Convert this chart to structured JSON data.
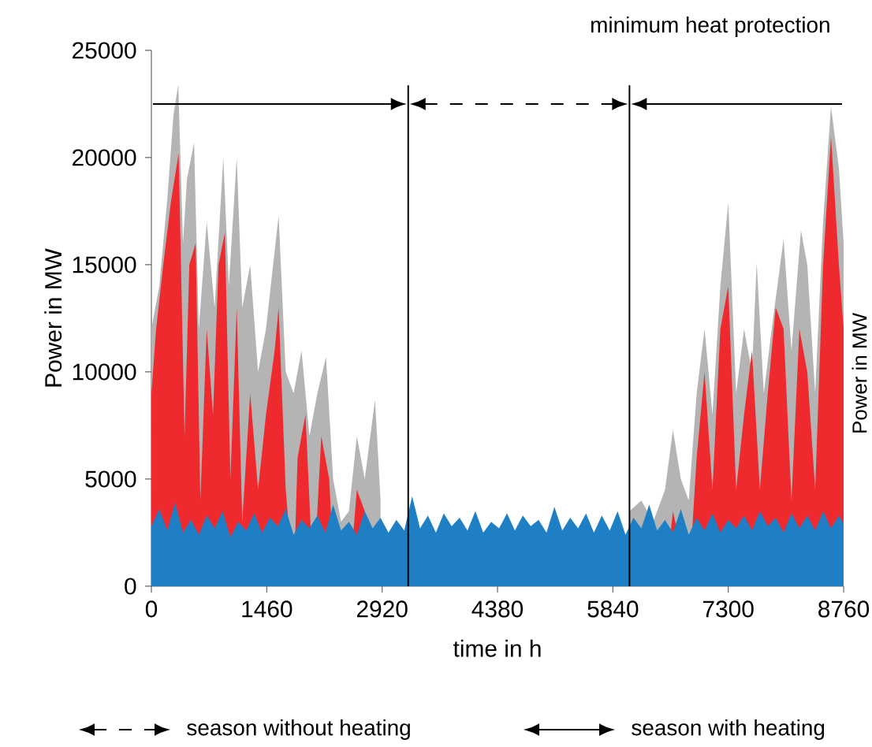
{
  "chart_data": {
    "type": "area",
    "title": "minimum heat protection",
    "xlabel": "time in h",
    "ylabel": "Power in MW",
    "annotations": [
      "season without heating",
      "season with heating",
      "Power in MW"
    ],
    "xlim": [
      0,
      8760
    ],
    "ylim": [
      0,
      25000
    ],
    "xticks": [
      0,
      1460,
      2920,
      4380,
      5840,
      7300,
      8760
    ],
    "yticks": [
      0,
      5000,
      10000,
      15000,
      20000,
      25000
    ],
    "x": [
      0,
      100,
      200,
      300,
      400,
      500,
      600,
      700,
      800,
      900,
      1000,
      1100,
      1200,
      1300,
      1400,
      1500,
      1600,
      1700,
      1800,
      1900,
      2000,
      2100,
      2200,
      2300,
      2400,
      2500,
      2600,
      2700,
      2800,
      2900,
      3000,
      3100,
      3200,
      3300,
      3400,
      3500,
      3600,
      3700,
      3800,
      3900,
      4000,
      4100,
      4200,
      4300,
      4400,
      4500,
      4600,
      4700,
      4800,
      4900,
      5000,
      5100,
      5200,
      5300,
      5400,
      5500,
      5600,
      5700,
      5800,
      5900,
      6000,
      6100,
      6200,
      6300,
      6400,
      6500,
      6600,
      6700,
      6800,
      6900,
      7000,
      7100,
      7200,
      7300,
      7400,
      7500,
      7600,
      7700,
      7800,
      7900,
      8000,
      8100,
      8200,
      8300,
      8400,
      8500,
      8600,
      8700,
      8760
    ],
    "series": [
      {
        "color": "#b4b4b4",
        "x": [
          0,
          100,
          200,
          280,
          340,
          400,
          450,
          540,
          600,
          700,
          800,
          910,
          980,
          1080,
          1150,
          1250,
          1350,
          1450,
          1610,
          1700,
          1800,
          1900,
          2000,
          2100,
          2210,
          2300,
          2400,
          2500,
          2600,
          2700,
          2830,
          2900,
          4500,
          6050,
          6200,
          6350,
          6500,
          6600,
          6700,
          6800,
          6900,
          7000,
          7100,
          7200,
          7300,
          7400,
          7500,
          7600,
          7660,
          7750,
          7850,
          8000,
          8100,
          8220,
          8300,
          8400,
          8500,
          8600,
          8700,
          8760
        ],
        "values": [
          12000,
          14000,
          18000,
          22000,
          23400,
          16000,
          19000,
          20700,
          12000,
          17000,
          13000,
          20000,
          14000,
          20000,
          13000,
          15000,
          10000,
          12000,
          17300,
          10000,
          9000,
          11000,
          7000,
          9000,
          10700,
          5000,
          3000,
          3500,
          7000,
          5000,
          8700,
          4000,
          null,
          3500,
          4000,
          3000,
          4500,
          7300,
          5000,
          4000,
          9000,
          12000,
          8000,
          14000,
          17900,
          9000,
          12000,
          10000,
          15100,
          9000,
          12000,
          16200,
          11000,
          16600,
          15000,
          9000,
          17000,
          22400,
          19500,
          16000
        ]
      },
      {
        "color": "#ee2a2f",
        "x": [
          0,
          60,
          150,
          250,
          345,
          420,
          480,
          560,
          620,
          700,
          780,
          850,
          930,
          1000,
          1080,
          1150,
          1250,
          1350,
          1450,
          1560,
          1610,
          1700,
          1800,
          1850,
          1950,
          2050,
          2150,
          2250,
          2320,
          2500,
          2600,
          2700,
          2900,
          3000,
          3250,
          4500,
          6050,
          6300,
          6500,
          6600,
          6800,
          6900,
          7000,
          7100,
          7200,
          7300,
          7400,
          7500,
          7600,
          7700,
          7800,
          7900,
          8000,
          8100,
          8200,
          8300,
          8400,
          8500,
          8600,
          8700,
          8760
        ],
        "values": [
          9000,
          12000,
          15000,
          18000,
          20200,
          7000,
          15000,
          16000,
          4000,
          12000,
          8000,
          15000,
          16500,
          5000,
          13000,
          3000,
          9000,
          4500,
          8000,
          11000,
          13000,
          4500,
          0,
          6000,
          8000,
          0,
          7000,
          5000,
          0,
          0,
          4500,
          3500,
          0,
          0,
          0,
          null,
          0,
          0,
          0,
          3500,
          0,
          6000,
          10000,
          4500,
          12000,
          14000,
          4500,
          8000,
          11000,
          4500,
          9000,
          13000,
          12000,
          4000,
          12000,
          10000,
          4500,
          15000,
          21000,
          15000,
          12000
        ]
      },
      {
        "color": "#1f7fc4",
        "values": [
          2800,
          3600,
          2600,
          3900,
          2500,
          3100,
          2400,
          3300,
          2700,
          3500,
          2300,
          3000,
          2600,
          3400,
          2500,
          3200,
          2800,
          3600,
          2400,
          3100,
          2700,
          3300,
          2500,
          3800,
          2600,
          3000,
          2400,
          3500,
          2700,
          3200,
          2500,
          3100,
          2600,
          4200,
          2700,
          3300,
          2500,
          3400,
          2800,
          3200,
          2600,
          3500,
          2500,
          3000,
          2700,
          3400,
          2600,
          3300,
          2800,
          3100,
          2500,
          3700,
          2600,
          3200,
          2700,
          3400,
          2500,
          3300,
          2600,
          3500,
          2400,
          3200,
          2700,
          3800,
          2600,
          3100,
          2500,
          3600,
          2400,
          3200,
          2600,
          3400,
          2500,
          3100,
          2700,
          3300,
          2600,
          3500,
          2800,
          3200,
          2500,
          3400,
          2700,
          3300,
          2600,
          3500,
          2700,
          3300,
          2900
        ]
      }
    ],
    "ref_lines": [
      {
        "axis": "x",
        "value": 3250,
        "color": "#000000"
      },
      {
        "axis": "x",
        "value": 6050,
        "color": "#000000"
      }
    ]
  }
}
